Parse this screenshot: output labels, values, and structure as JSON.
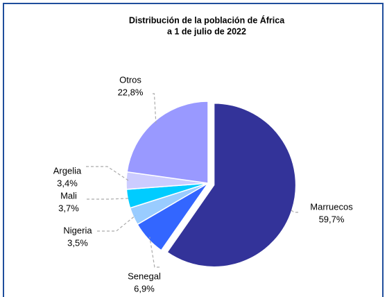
{
  "chart_data": {
    "type": "pie",
    "title": [
      "Distribución de la población de África",
      "a 1 de julio de 2022"
    ],
    "categories": [
      "Marruecos",
      "Senegal",
      "Nigeria",
      "Mali",
      "Argelia",
      "Otros"
    ],
    "values": [
      59.7,
      6.9,
      3.5,
      3.7,
      3.4,
      22.8
    ],
    "value_labels": [
      "59,7%",
      "6,9%",
      "3,5%",
      "3,7%",
      "3,4%",
      "22,8%"
    ],
    "colors": [
      "#333399",
      "#3366ff",
      "#99ccff",
      "#00ccff",
      "#ccccff",
      "#9999ff"
    ]
  }
}
